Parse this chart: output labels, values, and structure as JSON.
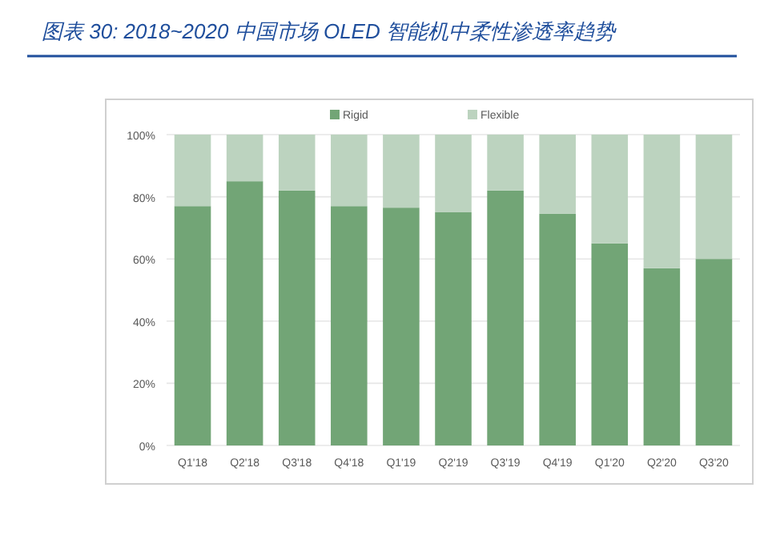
{
  "chart_data": {
    "type": "bar",
    "title": "图表 30:  2018~2020 中国市场 OLED 智能机中柔性渗透率趋势",
    "stacked": true,
    "categories": [
      "Q1'18",
      "Q2'18",
      "Q3'18",
      "Q4'18",
      "Q1'19",
      "Q2'19",
      "Q3'19",
      "Q4'19",
      "Q1'20",
      "Q2'20",
      "Q3'20"
    ],
    "series": [
      {
        "name": "Rigid",
        "color": "#72a576",
        "values": [
          77,
          85,
          82,
          77,
          76.5,
          75,
          82,
          74.5,
          65,
          57,
          60
        ]
      },
      {
        "name": "Flexible",
        "color": "#bcd3bf",
        "values": [
          23,
          15,
          18,
          23,
          23.5,
          25,
          18,
          25.5,
          35,
          43,
          40
        ]
      }
    ],
    "ylim": [
      0,
      100
    ],
    "yticks": [
      {
        "value": 0,
        "label": "0%"
      },
      {
        "value": 20,
        "label": "20%"
      },
      {
        "value": 40,
        "label": "40%"
      },
      {
        "value": 60,
        "label": "60%"
      },
      {
        "value": 80,
        "label": "80%"
      },
      {
        "value": 100,
        "label": "100%"
      }
    ],
    "grid": "y",
    "legend": "top"
  }
}
